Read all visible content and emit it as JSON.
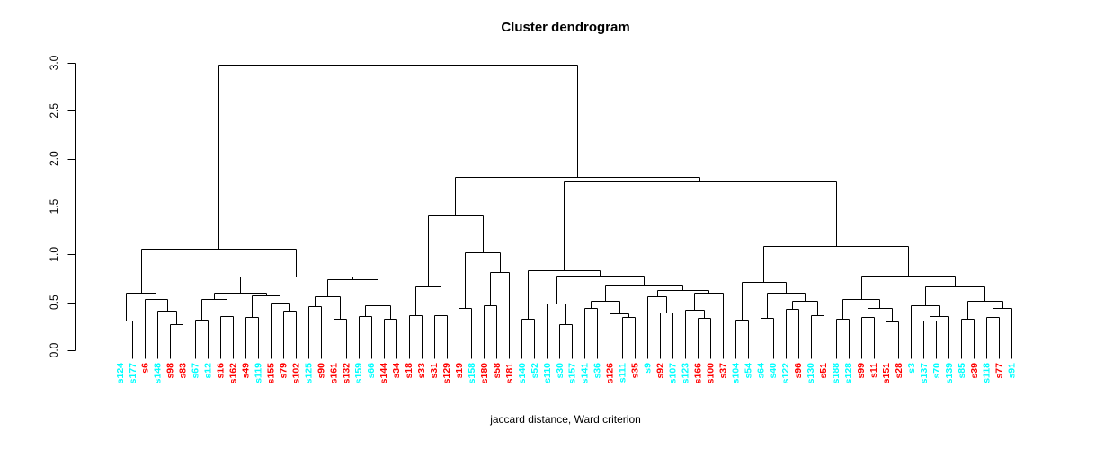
{
  "title": "Cluster dendrogram",
  "xlabel": "jaccard distance, Ward criterion",
  "palette": {
    "red": "#FF0000",
    "cyan": "#00FFFF",
    "line": "#000000"
  },
  "chart_data": {
    "type": "dendrogram",
    "title": "Cluster dendrogram",
    "xlabel": "jaccard distance, Ward criterion",
    "ylabel": "",
    "ylim": [
      0.0,
      3.0
    ],
    "yticks": [
      "0.0",
      "0.5",
      "1.0",
      "1.5",
      "2.0",
      "2.5",
      "3.0"
    ],
    "grid": false,
    "leaf_count": 72,
    "leaves": [
      {
        "label": "s124",
        "color": "cyan"
      },
      {
        "label": "s177",
        "color": "cyan"
      },
      {
        "label": "s6",
        "color": "red"
      },
      {
        "label": "s148",
        "color": "cyan"
      },
      {
        "label": "s98",
        "color": "red"
      },
      {
        "label": "s83",
        "color": "red"
      },
      {
        "label": "s67",
        "color": "cyan"
      },
      {
        "label": "s12",
        "color": "cyan"
      },
      {
        "label": "s16",
        "color": "red"
      },
      {
        "label": "s162",
        "color": "red"
      },
      {
        "label": "s49",
        "color": "red"
      },
      {
        "label": "s119",
        "color": "cyan"
      },
      {
        "label": "s155",
        "color": "red"
      },
      {
        "label": "s79",
        "color": "red"
      },
      {
        "label": "s102",
        "color": "red"
      },
      {
        "label": "s125",
        "color": "cyan"
      },
      {
        "label": "s90",
        "color": "red"
      },
      {
        "label": "s161",
        "color": "red"
      },
      {
        "label": "s132",
        "color": "red"
      },
      {
        "label": "s159",
        "color": "cyan"
      },
      {
        "label": "s66",
        "color": "cyan"
      },
      {
        "label": "s144",
        "color": "red"
      },
      {
        "label": "s34",
        "color": "red"
      },
      {
        "label": "s18",
        "color": "red"
      },
      {
        "label": "s33",
        "color": "red"
      },
      {
        "label": "s31",
        "color": "red"
      },
      {
        "label": "s129",
        "color": "red"
      },
      {
        "label": "s19",
        "color": "red"
      },
      {
        "label": "s158",
        "color": "cyan"
      },
      {
        "label": "s180",
        "color": "red"
      },
      {
        "label": "s58",
        "color": "red"
      },
      {
        "label": "s181",
        "color": "red"
      },
      {
        "label": "s140",
        "color": "cyan"
      },
      {
        "label": "s52",
        "color": "cyan"
      },
      {
        "label": "s110",
        "color": "cyan"
      },
      {
        "label": "s30",
        "color": "cyan"
      },
      {
        "label": "s157",
        "color": "cyan"
      },
      {
        "label": "s141",
        "color": "cyan"
      },
      {
        "label": "s36",
        "color": "cyan"
      },
      {
        "label": "s126",
        "color": "red"
      },
      {
        "label": "s111",
        "color": "cyan"
      },
      {
        "label": "s35",
        "color": "red"
      },
      {
        "label": "s9",
        "color": "cyan"
      },
      {
        "label": "s92",
        "color": "red"
      },
      {
        "label": "s107",
        "color": "cyan"
      },
      {
        "label": "s123",
        "color": "cyan"
      },
      {
        "label": "s166",
        "color": "red"
      },
      {
        "label": "s100",
        "color": "red"
      },
      {
        "label": "s37",
        "color": "red"
      },
      {
        "label": "s104",
        "color": "cyan"
      },
      {
        "label": "s54",
        "color": "cyan"
      },
      {
        "label": "s64",
        "color": "cyan"
      },
      {
        "label": "s40",
        "color": "cyan"
      },
      {
        "label": "s122",
        "color": "cyan"
      },
      {
        "label": "s96",
        "color": "red"
      },
      {
        "label": "s130",
        "color": "cyan"
      },
      {
        "label": "s51",
        "color": "red"
      },
      {
        "label": "s188",
        "color": "cyan"
      },
      {
        "label": "s128",
        "color": "cyan"
      },
      {
        "label": "s99",
        "color": "red"
      },
      {
        "label": "s11",
        "color": "red"
      },
      {
        "label": "s151",
        "color": "red"
      },
      {
        "label": "s28",
        "color": "red"
      },
      {
        "label": "s3",
        "color": "cyan"
      },
      {
        "label": "s137",
        "color": "cyan"
      },
      {
        "label": "s70",
        "color": "cyan"
      },
      {
        "label": "s139",
        "color": "cyan"
      },
      {
        "label": "s85",
        "color": "cyan"
      },
      {
        "label": "s39",
        "color": "red"
      },
      {
        "label": "s118",
        "color": "cyan"
      },
      {
        "label": "s77",
        "color": "red"
      },
      {
        "label": "s91",
        "color": "cyan"
      }
    ],
    "tree": [
      2.98,
      [
        1.06,
        [
          0.6,
          [
            0.31,
            "s124",
            "s177"
          ],
          [
            0.53,
            "s6",
            [
              0.41,
              "s148",
              [
                0.27,
                "s98",
                "s83"
              ]
            ]
          ]
        ],
        [
          0.77,
          [
            0.6,
            [
              0.53,
              [
                0.32,
                "s67",
                "s12"
              ],
              [
                0.36,
                "s16",
                "s162"
              ]
            ],
            [
              0.57,
              [
                0.35,
                "s49",
                "s119"
              ],
              [
                0.5,
                "s155",
                [
                  0.41,
                  "s79",
                  "s102"
                ]
              ]
            ]
          ],
          [
            0.74,
            [
              0.56,
              [
                0.46,
                "s125",
                "s90"
              ],
              [
                0.33,
                "s161",
                "s132"
              ]
            ],
            [
              0.47,
              [
                0.36,
                "s159",
                "s66"
              ],
              [
                0.33,
                "s144",
                "s34"
              ]
            ]
          ]
        ]
      ],
      [
        1.81,
        [
          1.42,
          [
            0.67,
            [
              0.37,
              "s18",
              "s33"
            ],
            [
              0.37,
              "s31",
              "s129"
            ]
          ],
          [
            1.02,
            [
              0.44,
              "s19",
              "s158"
            ],
            [
              0.82,
              [
                0.47,
                "s180",
                "s58"
              ],
              "s181"
            ]
          ]
        ],
        [
          1.76,
          [
            0.83,
            [
              0.33,
              "s140",
              "s52"
            ],
            [
              0.775,
              [
                0.49,
                "s110",
                [
                  0.27,
                  "s30",
                  "s157"
                ]
              ],
              [
                0.68,
                [
                  0.52,
                  [
                    0.44,
                    "s141",
                    "s36"
                  ],
                  [
                    0.38,
                    "s126",
                    [
                      0.35,
                      "s111",
                      "s35"
                    ]
                  ]
                ],
                [
                  0.63,
                  [
                    0.56,
                    "s9",
                    [
                      0.39,
                      "s92",
                      "s107"
                    ]
                  ],
                  [
                    0.6,
                    [
                      0.42,
                      "s123",
                      [
                        0.34,
                        "s166",
                        "s100"
                      ]
                    ],
                    "s37"
                  ]
                ]
              ]
            ]
          ],
          [
            1.09,
            [
              0.71,
              [
                0.32,
                "s104",
                "s54"
              ],
              [
                0.6,
                [
                  0.34,
                  "s64",
                  "s40"
                ],
                [
                  0.52,
                  [
                    0.43,
                    "s122",
                    "s96"
                  ],
                  [
                    0.37,
                    "s130",
                    "s51"
                  ]
                ]
              ]
            ],
            [
              0.78,
              [
                0.53,
                [
                  0.33,
                  "s188",
                  "s128"
                ],
                [
                  0.44,
                  [
                    0.35,
                    "s99",
                    "s11"
                  ],
                  [
                    0.3,
                    "s151",
                    "s28"
                  ]
                ]
              ],
              [
                0.67,
                [
                  0.47,
                  "s3",
                  [
                    0.36,
                    [
                      0.31,
                      "s137",
                      "s70"
                    ],
                    "s139"
                  ]
                ],
                [
                  0.52,
                  [
                    0.33,
                    "s85",
                    "s39"
                  ],
                  [
                    0.44,
                    [
                      0.35,
                      "s118",
                      "s77"
                    ],
                    "s91"
                  ]
                ]
              ]
            ]
          ]
        ]
      ]
    ]
  }
}
